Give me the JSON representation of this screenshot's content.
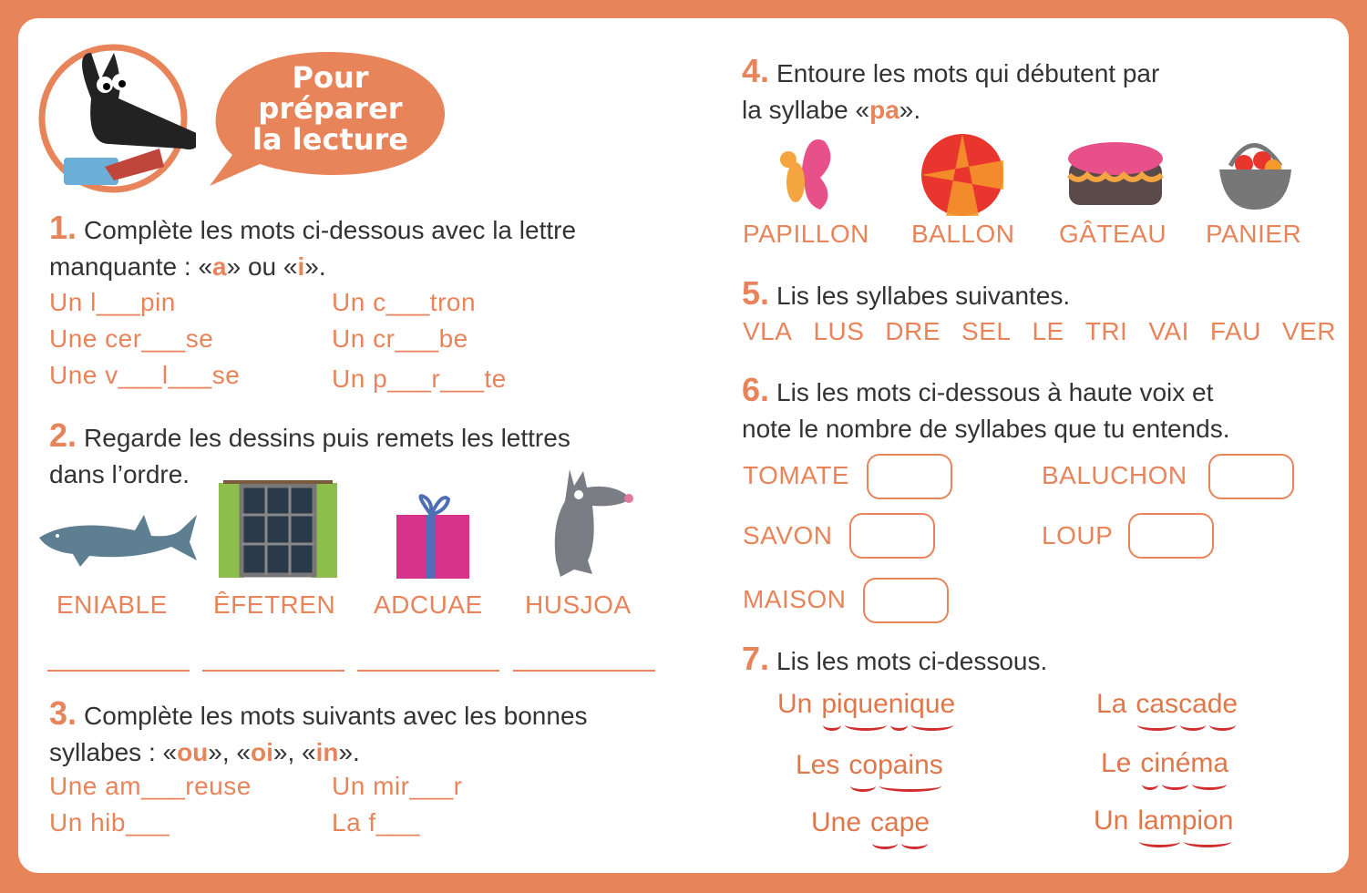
{
  "header": {
    "badge_text": [
      "Pour",
      "préparer",
      "la lecture"
    ]
  },
  "colors": {
    "accent": "#E8845A",
    "text": "#333333",
    "arc": "#D22E2E"
  },
  "q1": {
    "number": "1.",
    "text_a": "Complète les mots ci-dessous avec la lettre",
    "text_b_pre": "manquante : «",
    "opt1": "a",
    "mid": "» ou «",
    "opt2": "i",
    "end": "».",
    "words": [
      "Un l___pin",
      "Un c___tron",
      "Une cer___se",
      "Un cr___be",
      "Une v___l___se",
      "Un p___r___te"
    ]
  },
  "q2": {
    "number": "2.",
    "text_a": "Regarde les dessins puis remets les lettres",
    "text_b": "dans l’ordre.",
    "items": [
      {
        "icon": "shark",
        "word": "ENIABLE"
      },
      {
        "icon": "window",
        "word": "ÊFETREN"
      },
      {
        "icon": "gift",
        "word": "ADCUAE"
      },
      {
        "icon": "wolf",
        "word": "HUSJOA"
      }
    ]
  },
  "q3": {
    "number": "3.",
    "text_a": "Complète les mots suivants avec les bonnes",
    "text_b_pre": "syllabes : «",
    "o1": "ou",
    "s1": "», «",
    "o2": "oi",
    "s2": "», «",
    "o3": "in",
    "end": "».",
    "words": [
      "Une am___reuse",
      "Un mir___r",
      "Un hib___",
      "La f___"
    ]
  },
  "q4": {
    "number": "4.",
    "text_a": "Entoure les mots qui débutent par",
    "text_b_pre": "la syllabe «",
    "opt": "pa",
    "end": "».",
    "items": [
      {
        "icon": "butterfly",
        "word": "PAPILLON"
      },
      {
        "icon": "ball",
        "word": "BALLON"
      },
      {
        "icon": "cake",
        "word": "GÂTEAU"
      },
      {
        "icon": "basket",
        "word": "PANIER"
      }
    ]
  },
  "q5": {
    "number": "5.",
    "text": "Lis les syllabes suivantes.",
    "syllables": [
      "VLA",
      "LUS",
      "DRE",
      "SEL",
      "LE",
      "TRI",
      "VAI",
      "FAU",
      "VER"
    ]
  },
  "q6": {
    "number": "6.",
    "text_a": "Lis les mots ci-dessous à haute voix et",
    "text_b": "note le nombre de syllabes que tu entends.",
    "words": [
      "TOMATE",
      "BALUCHON",
      "SAVON",
      "LOUP",
      "MAISON"
    ]
  },
  "q7": {
    "number": "7.",
    "text": "Lis les mots ci-dessous.",
    "words": [
      {
        "article": "Un",
        "syllables": [
          "pi",
          "que",
          "ni",
          "que"
        ]
      },
      {
        "article": "La",
        "syllables": [
          "cas",
          "ca",
          "de"
        ]
      },
      {
        "article": "Les",
        "syllables": [
          "co",
          "pains"
        ]
      },
      {
        "article": "Le",
        "syllables": [
          "ci",
          "né",
          "ma"
        ]
      },
      {
        "article": "Une",
        "syllables": [
          "ca",
          "pe"
        ]
      },
      {
        "article": "Un",
        "syllables": [
          "lam",
          "pion"
        ]
      }
    ]
  }
}
